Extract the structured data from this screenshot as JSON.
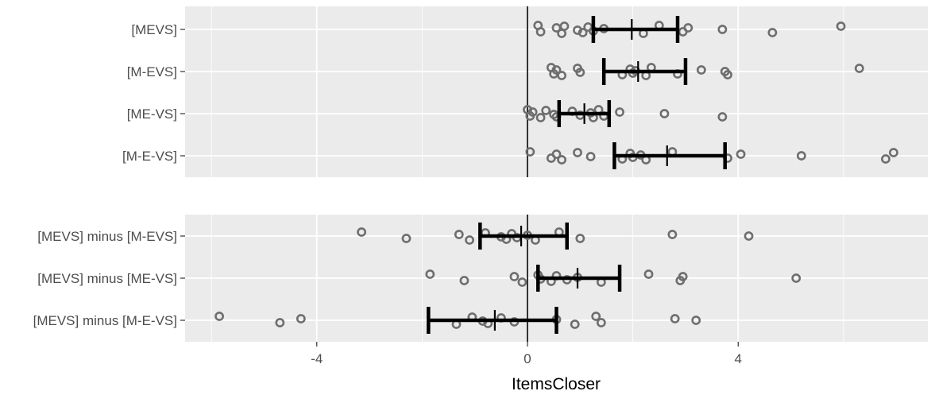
{
  "chart_data": {
    "type": "scatter",
    "xlabel": "ItemsCloser",
    "xlim": [
      -6.5,
      7.6
    ],
    "x_ticks": [
      -4,
      0,
      4
    ],
    "x_tick_labels": [
      "-4",
      "0",
      "4"
    ],
    "zero_line": 0,
    "grid": true,
    "legend": "none",
    "colors": {
      "panel_bg": "#ebebeb",
      "grid": "#ffffff",
      "point": "#6e6e6e",
      "error_bar": "#000000",
      "zero_line": "#000000",
      "text": "#4d4d4d"
    },
    "panels": [
      {
        "name": "top",
        "categories": [
          {
            "label": "[MEVS]",
            "points": [
              0.2,
              0.25,
              0.55,
              0.65,
              0.7,
              0.95,
              1.05,
              1.15,
              1.25,
              1.45,
              2.2,
              2.5,
              2.95,
              3.05,
              3.7,
              4.65,
              5.95
            ],
            "mean": 1.98,
            "ci": [
              1.25,
              2.85
            ]
          },
          {
            "label": "[M-EVS]",
            "points": [
              0.45,
              0.5,
              0.55,
              0.65,
              0.95,
              1.0,
              1.8,
              1.95,
              2.0,
              2.05,
              2.25,
              2.35,
              2.85,
              3.3,
              3.75,
              3.8,
              6.3
            ],
            "mean": 2.1,
            "ci": [
              1.45,
              3.0
            ]
          },
          {
            "label": "[ME-VS]",
            "points": [
              0.0,
              0.05,
              0.1,
              0.25,
              0.35,
              0.5,
              0.55,
              0.85,
              1.0,
              1.2,
              1.25,
              1.35,
              1.45,
              1.75,
              2.6,
              3.7
            ],
            "mean": 1.08,
            "ci": [
              0.6,
              1.55
            ]
          },
          {
            "label": "[M-E-VS]",
            "points": [
              0.05,
              0.45,
              0.55,
              0.65,
              0.95,
              1.2,
              1.8,
              1.95,
              2.0,
              2.15,
              2.25,
              2.75,
              3.8,
              4.05,
              5.2,
              6.8,
              6.95
            ],
            "mean": 2.65,
            "ci": [
              1.65,
              3.75
            ]
          }
        ]
      },
      {
        "name": "bottom",
        "categories": [
          {
            "label": "[MEVS] minus [M-EVS]",
            "points": [
              -3.15,
              -2.3,
              -1.3,
              -1.1,
              -0.8,
              -0.5,
              -0.4,
              -0.3,
              -0.2,
              0.0,
              0.15,
              0.6,
              1.0,
              2.75,
              4.2
            ],
            "mean": -0.12,
            "ci": [
              -0.9,
              0.75
            ]
          },
          {
            "label": "[MEVS] minus [ME-VS]",
            "points": [
              -1.85,
              -1.2,
              -0.25,
              -0.1,
              0.2,
              0.25,
              0.45,
              0.55,
              0.75,
              0.95,
              1.4,
              2.3,
              2.9,
              2.95,
              5.1
            ],
            "mean": 0.95,
            "ci": [
              0.2,
              1.75
            ]
          },
          {
            "label": "[MEVS] minus [M-E-VS]",
            "points": [
              -5.85,
              -4.7,
              -4.3,
              -1.35,
              -1.05,
              -0.85,
              -0.75,
              -0.5,
              -0.25,
              0.55,
              0.9,
              1.3,
              1.4,
              2.8,
              3.2
            ],
            "mean": -0.62,
            "ci": [
              -1.88,
              0.55
            ]
          }
        ]
      }
    ]
  }
}
